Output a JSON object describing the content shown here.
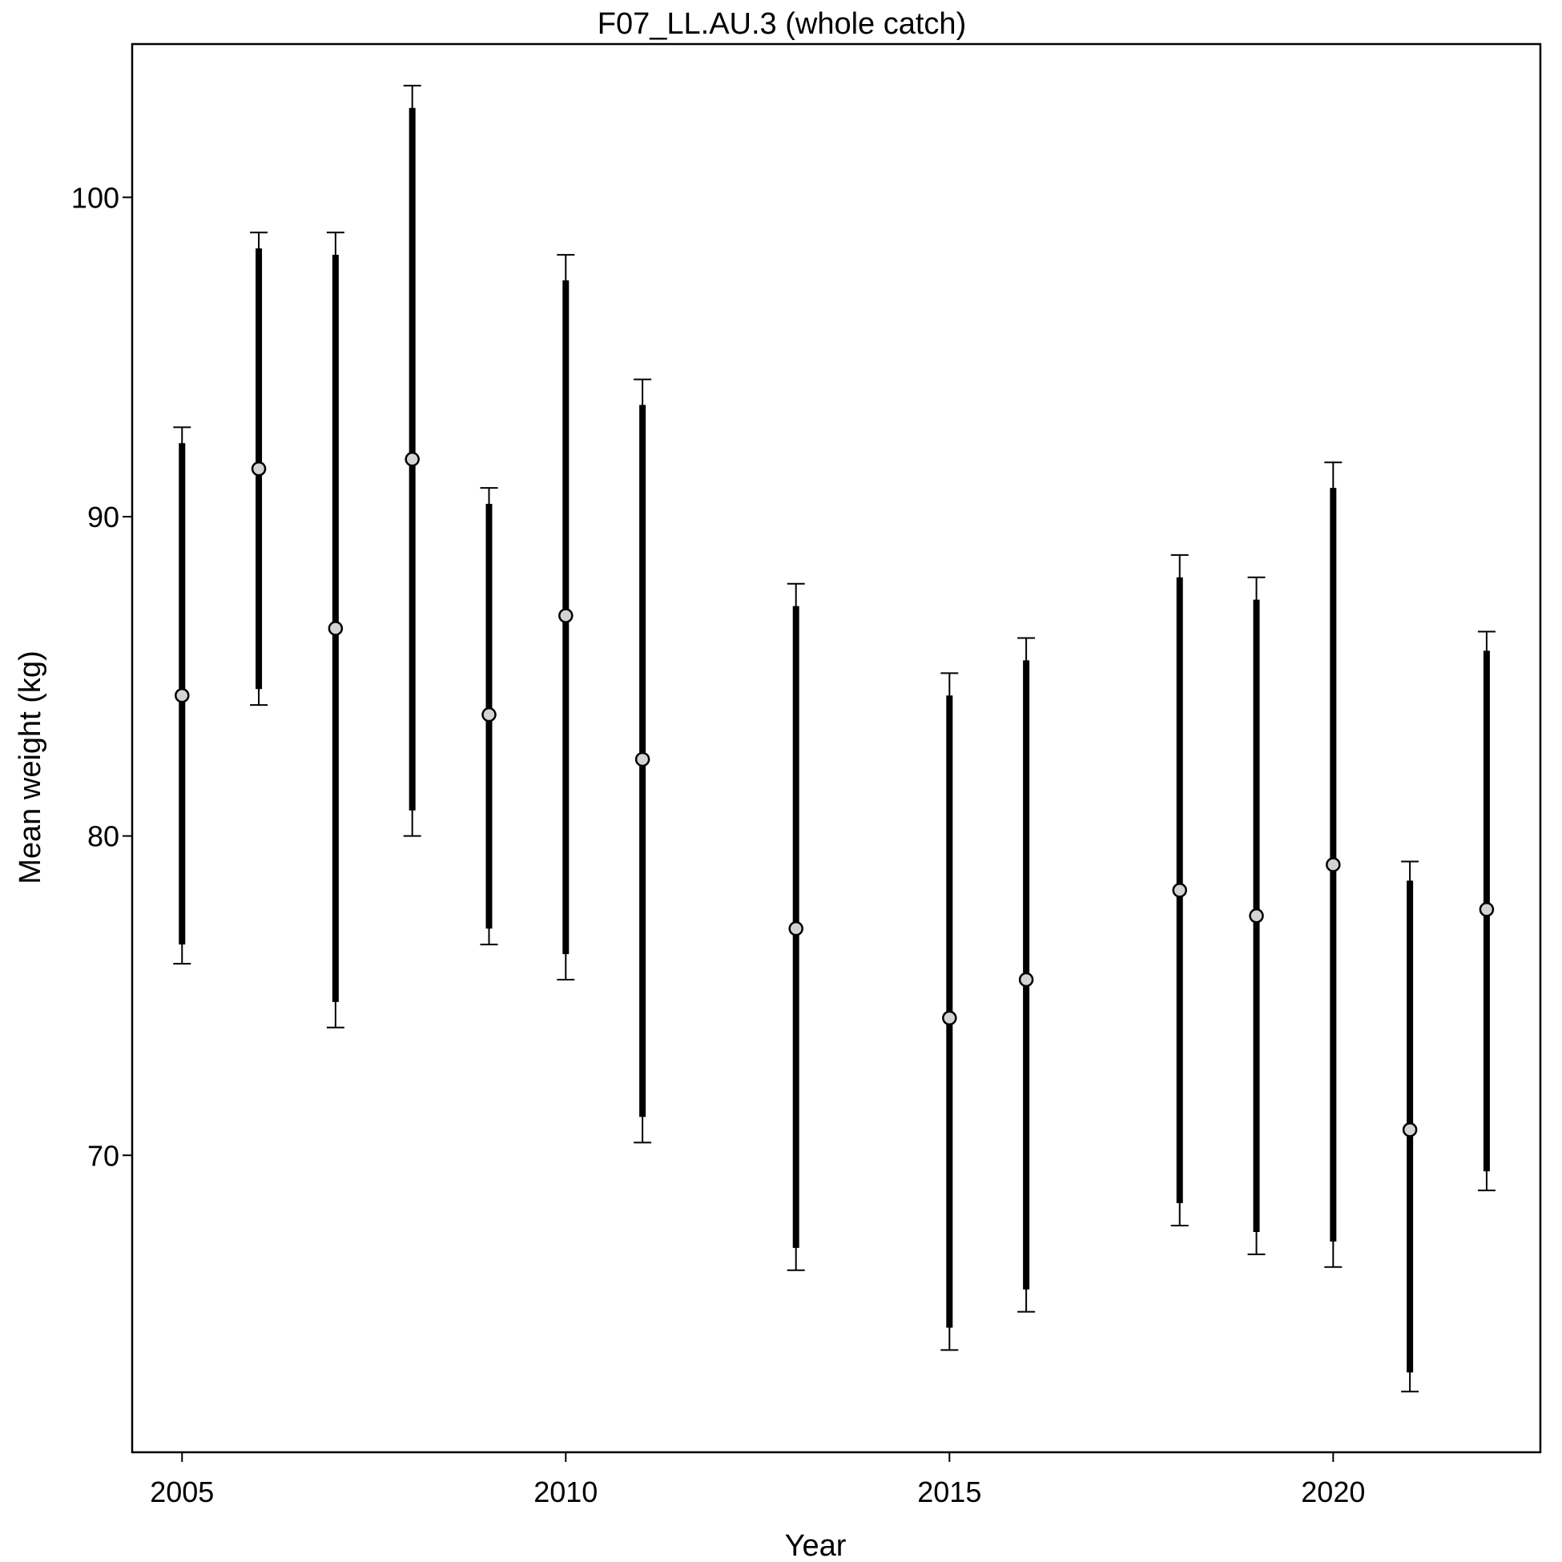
{
  "chart_data": {
    "type": "errorbar",
    "title": "F07_LL.AU.3 (whole catch)",
    "xlabel": "Year",
    "ylabel": "Mean weight (kg)",
    "xlim": [
      2004.35,
      2022.7
    ],
    "ylim": [
      60.7,
      104.8
    ],
    "x_ticks": [
      2005,
      2010,
      2015,
      2020
    ],
    "y_ticks": [
      70,
      80,
      90,
      100
    ],
    "grid": false,
    "legend": "none",
    "point_fill": "#d3d3d3",
    "line_color": "#000000",
    "points": [
      {
        "x": 2005,
        "mean": 84.4,
        "inner": [
          76.6,
          92.3
        ],
        "outer": [
          76.0,
          92.8
        ]
      },
      {
        "x": 2006,
        "mean": 91.5,
        "inner": [
          84.6,
          98.4
        ],
        "outer": [
          84.1,
          98.9
        ]
      },
      {
        "x": 2007,
        "mean": 86.5,
        "inner": [
          74.8,
          98.2
        ],
        "outer": [
          74.0,
          98.9
        ]
      },
      {
        "x": 2008,
        "mean": 91.8,
        "inner": [
          80.8,
          102.8
        ],
        "outer": [
          80.0,
          103.5
        ]
      },
      {
        "x": 2009,
        "mean": 83.8,
        "inner": [
          77.1,
          90.4
        ],
        "outer": [
          76.6,
          90.9
        ]
      },
      {
        "x": 2010,
        "mean": 86.9,
        "inner": [
          76.3,
          97.4
        ],
        "outer": [
          75.5,
          98.2
        ]
      },
      {
        "x": 2011,
        "mean": 82.4,
        "inner": [
          71.2,
          93.5
        ],
        "outer": [
          70.4,
          94.3
        ]
      },
      {
        "x": 2013,
        "mean": 77.1,
        "inner": [
          67.1,
          87.2
        ],
        "outer": [
          66.4,
          87.9
        ]
      },
      {
        "x": 2015,
        "mean": 74.3,
        "inner": [
          64.6,
          84.4
        ],
        "outer": [
          63.9,
          85.1
        ]
      },
      {
        "x": 2016,
        "mean": 75.5,
        "inner": [
          65.8,
          85.5
        ],
        "outer": [
          65.1,
          86.2
        ]
      },
      {
        "x": 2018,
        "mean": 78.3,
        "inner": [
          68.5,
          88.1
        ],
        "outer": [
          67.8,
          88.8
        ]
      },
      {
        "x": 2019,
        "mean": 77.5,
        "inner": [
          67.6,
          87.4
        ],
        "outer": [
          66.9,
          88.1
        ]
      },
      {
        "x": 2020,
        "mean": 79.1,
        "inner": [
          67.3,
          90.9
        ],
        "outer": [
          66.5,
          91.7
        ]
      },
      {
        "x": 2021,
        "mean": 70.8,
        "inner": [
          63.2,
          78.6
        ],
        "outer": [
          62.6,
          79.2
        ]
      },
      {
        "x": 2022,
        "mean": 77.7,
        "inner": [
          69.5,
          85.8
        ],
        "outer": [
          68.9,
          86.4
        ]
      }
    ]
  }
}
